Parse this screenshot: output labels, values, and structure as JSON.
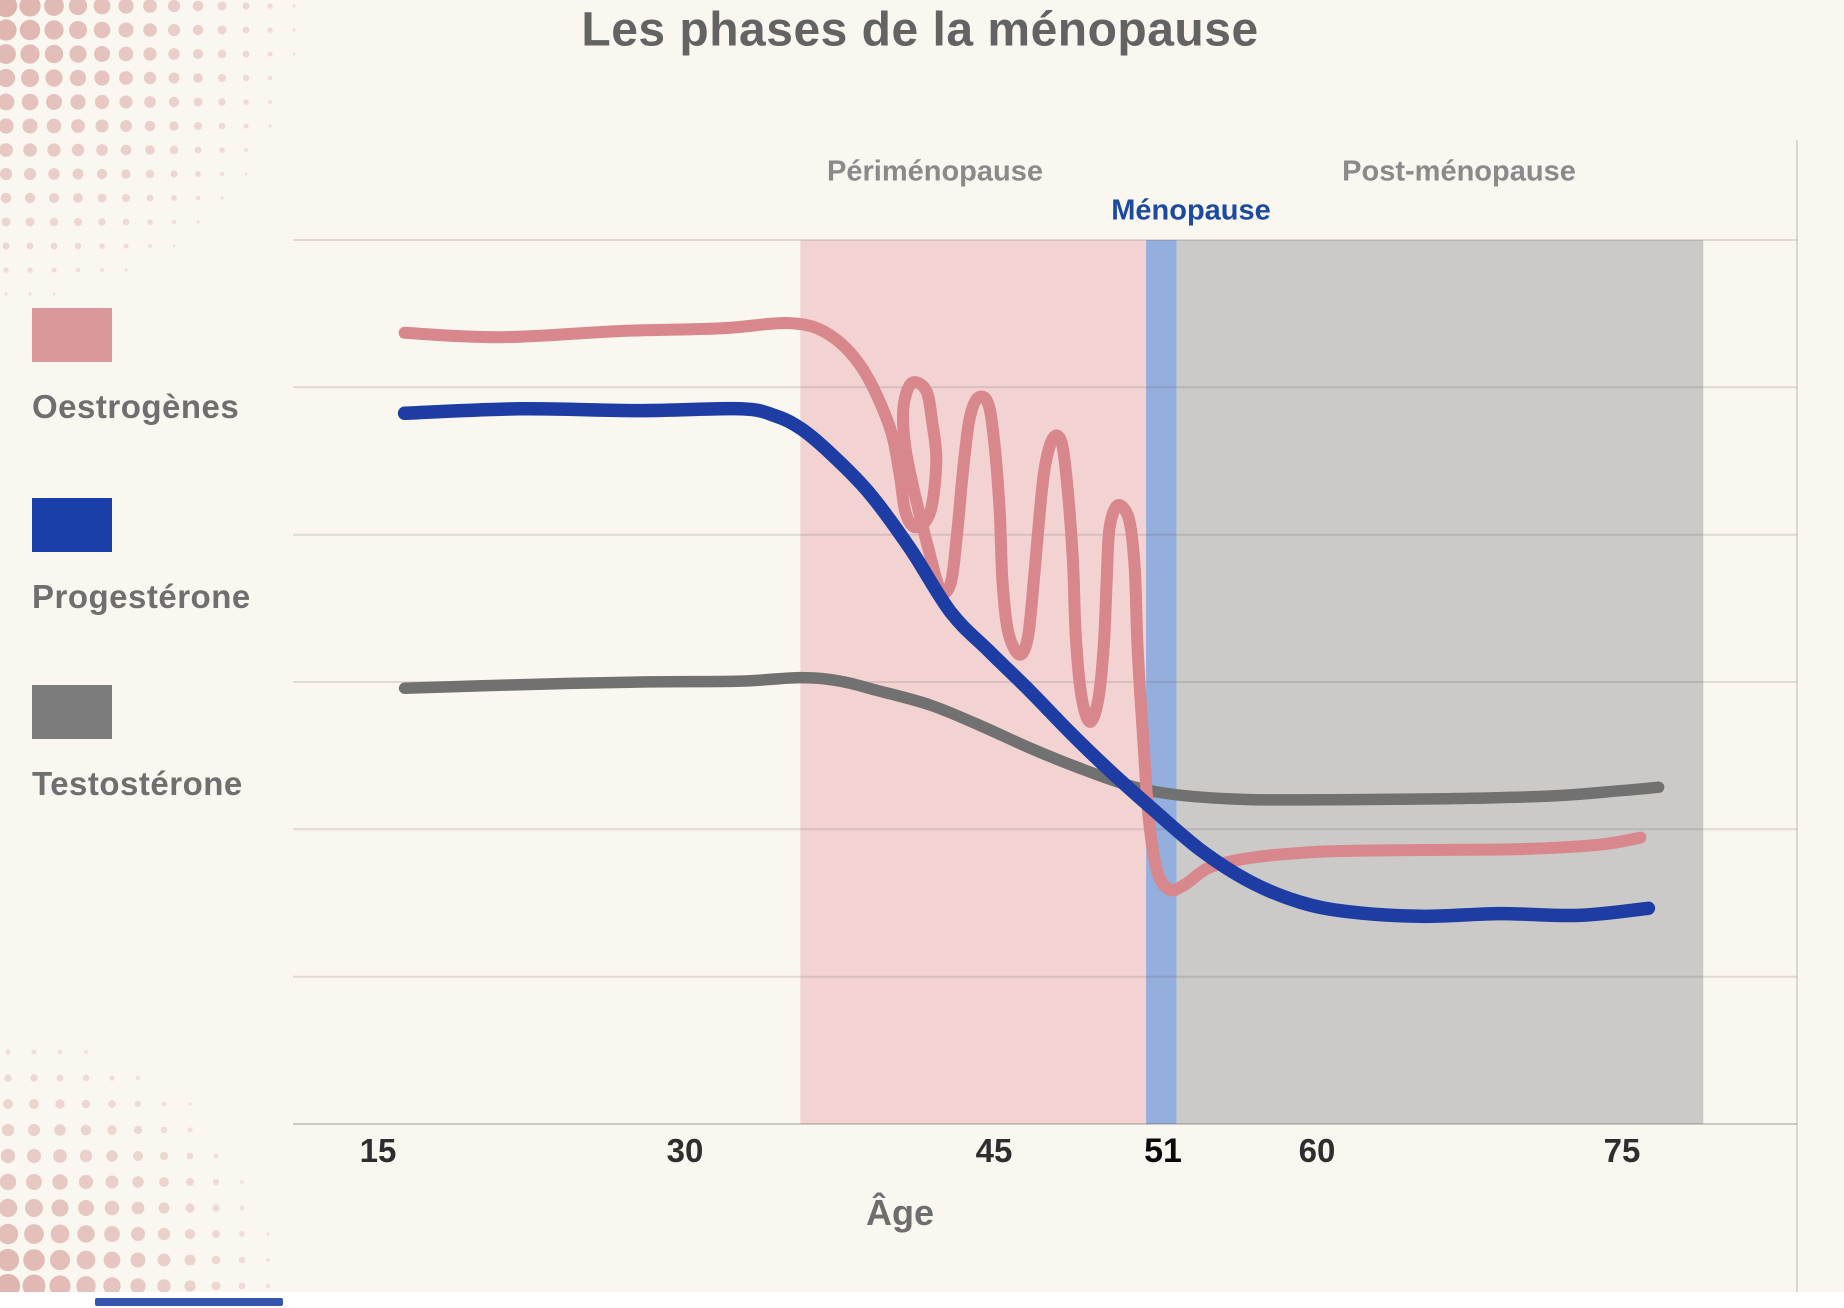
{
  "page": {
    "background_color": "#faf6f0",
    "bottom_strip_color": "#ffffff",
    "card_edge_color": "rgba(110,105,100,0.22)"
  },
  "title": {
    "text": "Les phases de la ménopause",
    "color": "#636363"
  },
  "legend": [
    {
      "label": "Oestrogènes",
      "color": "#db989c"
    },
    {
      "label": "Progestérone",
      "color": "#1a3fa8"
    },
    {
      "label": "Testostérone",
      "color": "#7c7c7c"
    }
  ],
  "x_axis": {
    "label": "Âge",
    "label_color": "#6e6e6e",
    "ticks": [
      {
        "label": "15",
        "age": 15,
        "emphasis": false
      },
      {
        "label": "30",
        "age": 30,
        "emphasis": false
      },
      {
        "label": "45",
        "age": 45,
        "emphasis": false
      },
      {
        "label": "51",
        "age": 51,
        "emphasis": true
      },
      {
        "label": "60",
        "age": 60,
        "emphasis": false
      },
      {
        "label": "75",
        "age": 75,
        "emphasis": false
      }
    ]
  },
  "chart_data": {
    "type": "line",
    "title": "Les phases de la ménopause",
    "xlabel": "Âge",
    "x_ticks": [
      15,
      30,
      45,
      51,
      60,
      75
    ],
    "ylabel": "",
    "y_axis_note": "relative hormone level 0-100, no visible y tick labels",
    "grid": "7 horizontal gridlines, evenly spaced",
    "grid_color": "rgba(100,95,90,0.18)",
    "axis_color": "rgba(100,95,90,0.30)",
    "phases": [
      {
        "id": "perimenopause",
        "label": "Périménopause",
        "label_color": "#8a8a8a",
        "fill": "#f2d3d2",
        "from_age": 35.6,
        "to_age": 50.4
      },
      {
        "id": "menopause",
        "label": "Ménopause",
        "label_color": "#1c4a9f",
        "fill": "#94aedd",
        "from_age": 50.4,
        "to_age": 51.8
      },
      {
        "id": "postmenopause",
        "label": "Post-ménopause",
        "label_color": "#8a8a8a",
        "fill": "#cbcac8",
        "from_age": 51.8,
        "to_age": 79.0
      }
    ],
    "series": [
      {
        "name": "Oestrogènes",
        "color": "#d8878c",
        "points": [
          [
            16.3,
            89.5
          ],
          [
            21.0,
            89.0
          ],
          [
            26.8,
            89.7
          ],
          [
            31.7,
            90.0
          ],
          [
            35.1,
            90.6
          ],
          [
            37.0,
            89.3
          ],
          [
            38.6,
            85.5
          ],
          [
            39.9,
            79.1
          ],
          [
            40.4,
            73.8
          ],
          [
            40.7,
            69.2
          ],
          [
            41.2,
            67.5
          ],
          [
            41.9,
            69.2
          ],
          [
            42.2,
            74.9
          ],
          [
            42.0,
            79.4
          ],
          [
            41.7,
            83.0
          ],
          [
            41.0,
            83.8
          ],
          [
            40.6,
            81.0
          ],
          [
            40.7,
            76.5
          ],
          [
            41.2,
            70.8
          ],
          [
            41.8,
            65.2
          ],
          [
            42.4,
            60.4
          ],
          [
            42.9,
            61.2
          ],
          [
            43.2,
            66.6
          ],
          [
            43.5,
            74.0
          ],
          [
            43.8,
            79.6
          ],
          [
            44.2,
            82.1
          ],
          [
            44.7,
            81.6
          ],
          [
            45.0,
            77.4
          ],
          [
            45.2,
            69.5
          ],
          [
            45.3,
            61.5
          ],
          [
            45.5,
            55.7
          ],
          [
            45.9,
            53.1
          ],
          [
            46.2,
            55.0
          ],
          [
            46.4,
            61.0
          ],
          [
            46.6,
            68.3
          ],
          [
            46.8,
            74.2
          ],
          [
            47.1,
            77.6
          ],
          [
            47.4,
            77.1
          ],
          [
            47.6,
            72.3
          ],
          [
            47.8,
            63.8
          ],
          [
            47.9,
            55.3
          ],
          [
            48.1,
            48.5
          ],
          [
            48.4,
            45.5
          ],
          [
            48.7,
            48.0
          ],
          [
            48.9,
            54.2
          ],
          [
            49.0,
            61.5
          ],
          [
            49.1,
            67.4
          ],
          [
            49.4,
            70.0
          ],
          [
            49.8,
            68.3
          ],
          [
            50.0,
            62.7
          ],
          [
            50.1,
            53.6
          ],
          [
            50.3,
            43.4
          ],
          [
            50.5,
            34.4
          ],
          [
            50.8,
            28.5
          ],
          [
            51.4,
            26.5
          ],
          [
            52.3,
            27.1
          ],
          [
            53.7,
            29.0
          ],
          [
            56.1,
            30.1
          ],
          [
            60.1,
            30.8
          ],
          [
            65.1,
            31.0
          ],
          [
            70.0,
            31.1
          ],
          [
            73.9,
            31.6
          ],
          [
            75.9,
            32.4
          ]
        ]
      },
      {
        "name": "Progestérone",
        "color": "#1d3da4",
        "points": [
          [
            16.3,
            80.4
          ],
          [
            21.9,
            80.9
          ],
          [
            27.8,
            80.7
          ],
          [
            32.7,
            80.9
          ],
          [
            34.4,
            80.1
          ],
          [
            35.6,
            78.7
          ],
          [
            37.0,
            76.0
          ],
          [
            38.9,
            71.5
          ],
          [
            40.9,
            65.2
          ],
          [
            42.9,
            57.9
          ],
          [
            44.8,
            53.4
          ],
          [
            46.3,
            48.9
          ],
          [
            47.7,
            44.3
          ],
          [
            49.1,
            40.0
          ],
          [
            50.5,
            36.0
          ],
          [
            53.2,
            31.0
          ],
          [
            56.1,
            27.4
          ],
          [
            59.0,
            25.1
          ],
          [
            61.6,
            24.0
          ],
          [
            65.1,
            23.5
          ],
          [
            69.0,
            23.8
          ],
          [
            72.9,
            23.6
          ],
          [
            76.3,
            24.4
          ]
        ]
      },
      {
        "name": "Testostérone",
        "color": "#717171",
        "points": [
          [
            16.3,
            49.3
          ],
          [
            21.9,
            49.7
          ],
          [
            27.8,
            50.0
          ],
          [
            32.7,
            50.1
          ],
          [
            35.6,
            50.5
          ],
          [
            37.5,
            50.1
          ],
          [
            39.4,
            49.0
          ],
          [
            41.9,
            47.4
          ],
          [
            44.3,
            45.1
          ],
          [
            46.3,
            42.5
          ],
          [
            48.0,
            40.3
          ],
          [
            49.9,
            38.2
          ],
          [
            52.0,
            37.2
          ],
          [
            56.1,
            36.7
          ],
          [
            61.6,
            36.7
          ],
          [
            66.5,
            36.8
          ],
          [
            71.5,
            37.1
          ],
          [
            74.9,
            37.7
          ],
          [
            76.8,
            38.1
          ]
        ]
      }
    ]
  },
  "decor": {
    "halftone_dot_color": "#cf8d89",
    "bottom_bar_color": "#3456ae"
  }
}
